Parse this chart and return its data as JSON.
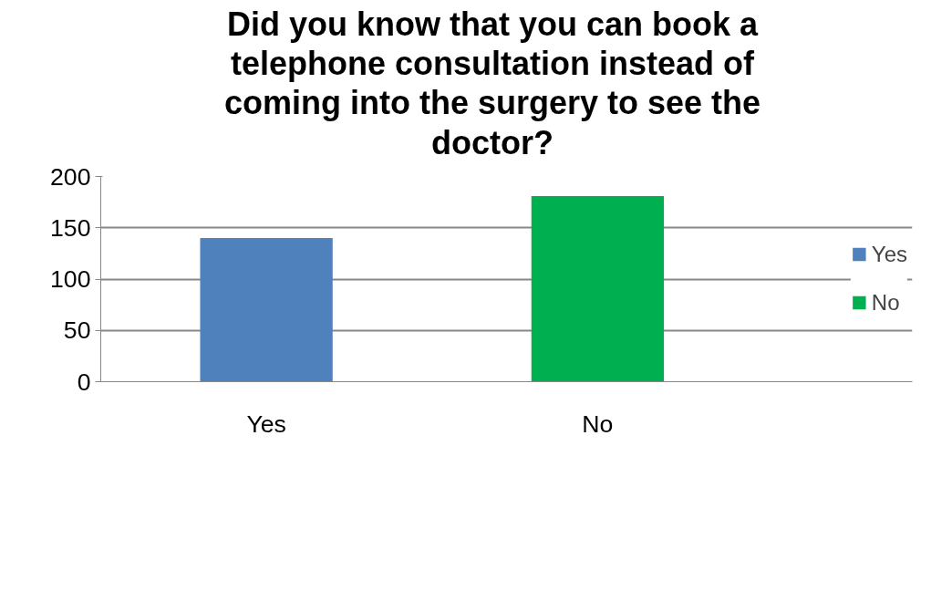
{
  "chart_data": {
    "type": "bar",
    "title": "Did you know that you can book a telephone consultation instead of coming into the surgery to see the doctor?",
    "categories": [
      "Yes",
      "No"
    ],
    "series": [
      {
        "name": "Yes",
        "color": "#4f81bd",
        "values": [
          140,
          null
        ]
      },
      {
        "name": "No",
        "color": "#00b050",
        "values": [
          null,
          181
        ]
      }
    ],
    "ylim": [
      0,
      200
    ],
    "yticks": [
      0,
      50,
      100,
      150,
      200
    ],
    "grid": "y",
    "legend": "right"
  }
}
